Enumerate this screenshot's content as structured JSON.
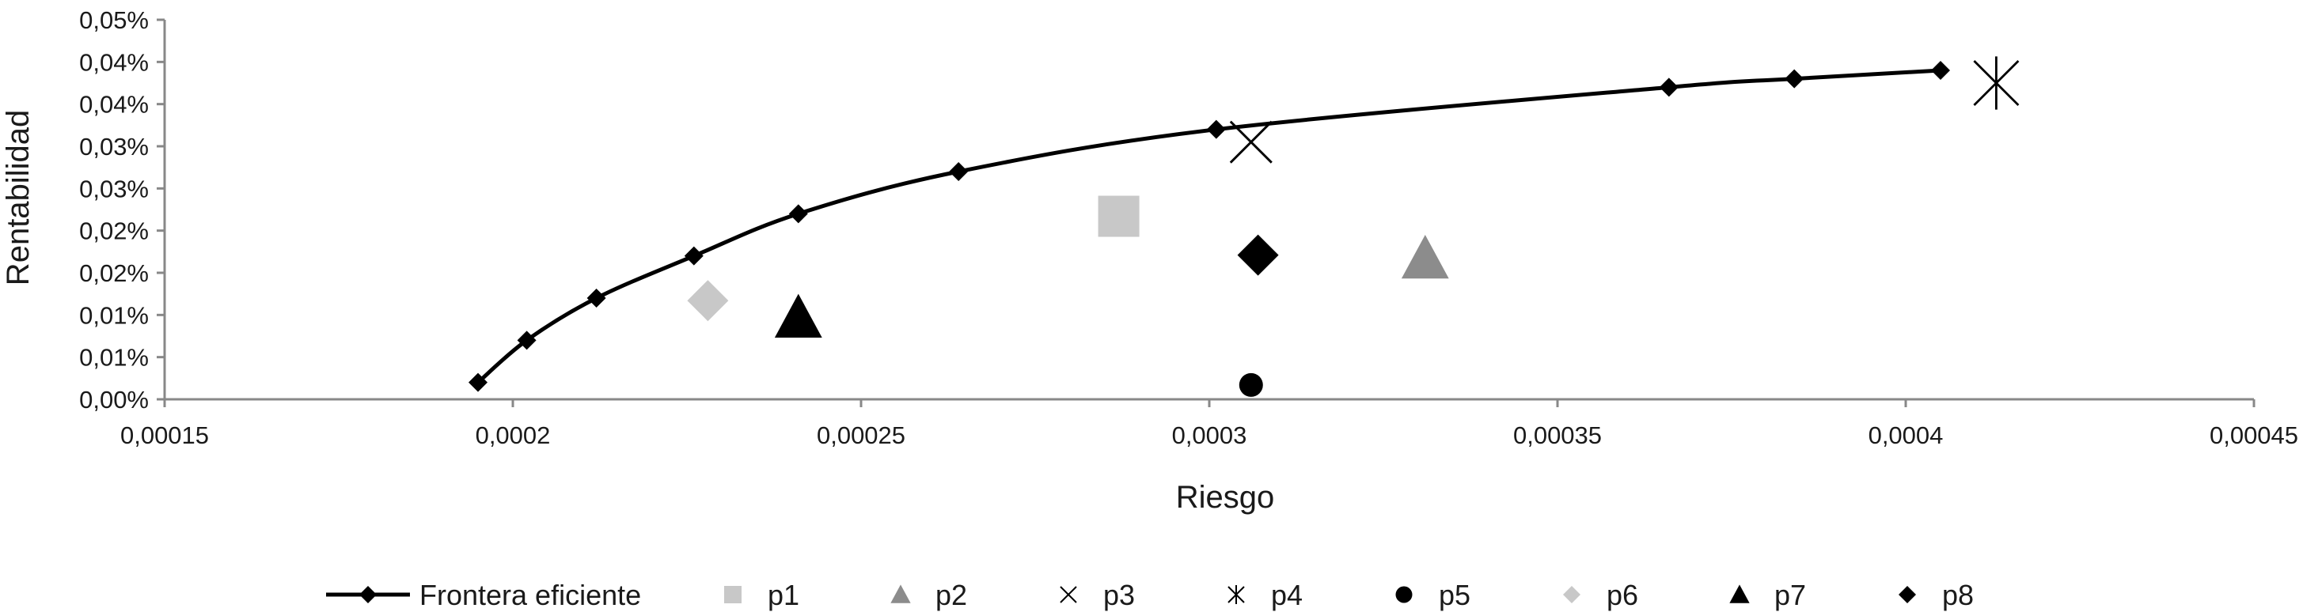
{
  "chart_data": {
    "type": "scatter",
    "xlabel": "Riesgo",
    "ylabel": "Rentabilidad",
    "xlim": [
      0.00015,
      0.00045
    ],
    "ylim": [
      0,
      0.045
    ],
    "grid": false,
    "legend_position": "bottom",
    "x_ticks": [
      {
        "value": 0.00015,
        "label": "0,00015"
      },
      {
        "value": 0.0002,
        "label": "0,0002"
      },
      {
        "value": 0.00025,
        "label": "0,00025"
      },
      {
        "value": 0.0003,
        "label": "0,0003"
      },
      {
        "value": 0.00035,
        "label": "0,00035"
      },
      {
        "value": 0.0004,
        "label": "0,0004"
      },
      {
        "value": 0.00045,
        "label": "0,00045"
      }
    ],
    "y_ticks": [
      {
        "value": 0,
        "label": "0,00%"
      },
      {
        "value": 0.005,
        "label": "0,01%"
      },
      {
        "value": 0.01,
        "label": "0,01%"
      },
      {
        "value": 0.015,
        "label": "0,02%"
      },
      {
        "value": 0.02,
        "label": "0,02%"
      },
      {
        "value": 0.025,
        "label": "0,03%"
      },
      {
        "value": 0.03,
        "label": "0,03%"
      },
      {
        "value": 0.035,
        "label": "0,04%"
      },
      {
        "value": 0.04,
        "label": "0,04%"
      },
      {
        "value": 0.045,
        "label": "0,05%"
      }
    ],
    "frontier": {
      "name": "Frontera eficiente",
      "color": "#000000",
      "marker": "diamond",
      "points": [
        {
          "x": 0.000195,
          "y": 0.002
        },
        {
          "x": 0.000202,
          "y": 0.007
        },
        {
          "x": 0.000212,
          "y": 0.012
        },
        {
          "x": 0.000226,
          "y": 0.017
        },
        {
          "x": 0.000241,
          "y": 0.022
        },
        {
          "x": 0.000264,
          "y": 0.027
        },
        {
          "x": 0.000301,
          "y": 0.032
        },
        {
          "x": 0.000366,
          "y": 0.037
        },
        {
          "x": 0.000384,
          "y": 0.038
        },
        {
          "x": 0.000405,
          "y": 0.039
        }
      ]
    },
    "portfolios": [
      {
        "name": "p1",
        "marker": "square",
        "color": "#c8c8c8",
        "x": 0.000287,
        "y": 0.0217
      },
      {
        "name": "p2",
        "marker": "triangle",
        "color": "#8c8c8c",
        "x": 0.000331,
        "y": 0.0167
      },
      {
        "name": "p3",
        "marker": "x",
        "color": "#000000",
        "x": 0.000306,
        "y": 0.0305
      },
      {
        "name": "p4",
        "marker": "asterisk",
        "color": "#000000",
        "x": 0.000413,
        "y": 0.0375
      },
      {
        "name": "p5",
        "marker": "circle",
        "color": "#000000",
        "x": 0.000306,
        "y": 0.0017
      },
      {
        "name": "p6",
        "marker": "diamond",
        "color": "#c8c8c8",
        "x": 0.000228,
        "y": 0.0117
      },
      {
        "name": "p7",
        "marker": "triangle",
        "color": "#000000",
        "x": 0.000241,
        "y": 0.0097
      },
      {
        "name": "p8",
        "marker": "diamond",
        "color": "#000000",
        "x": 0.000307,
        "y": 0.0171
      }
    ]
  }
}
